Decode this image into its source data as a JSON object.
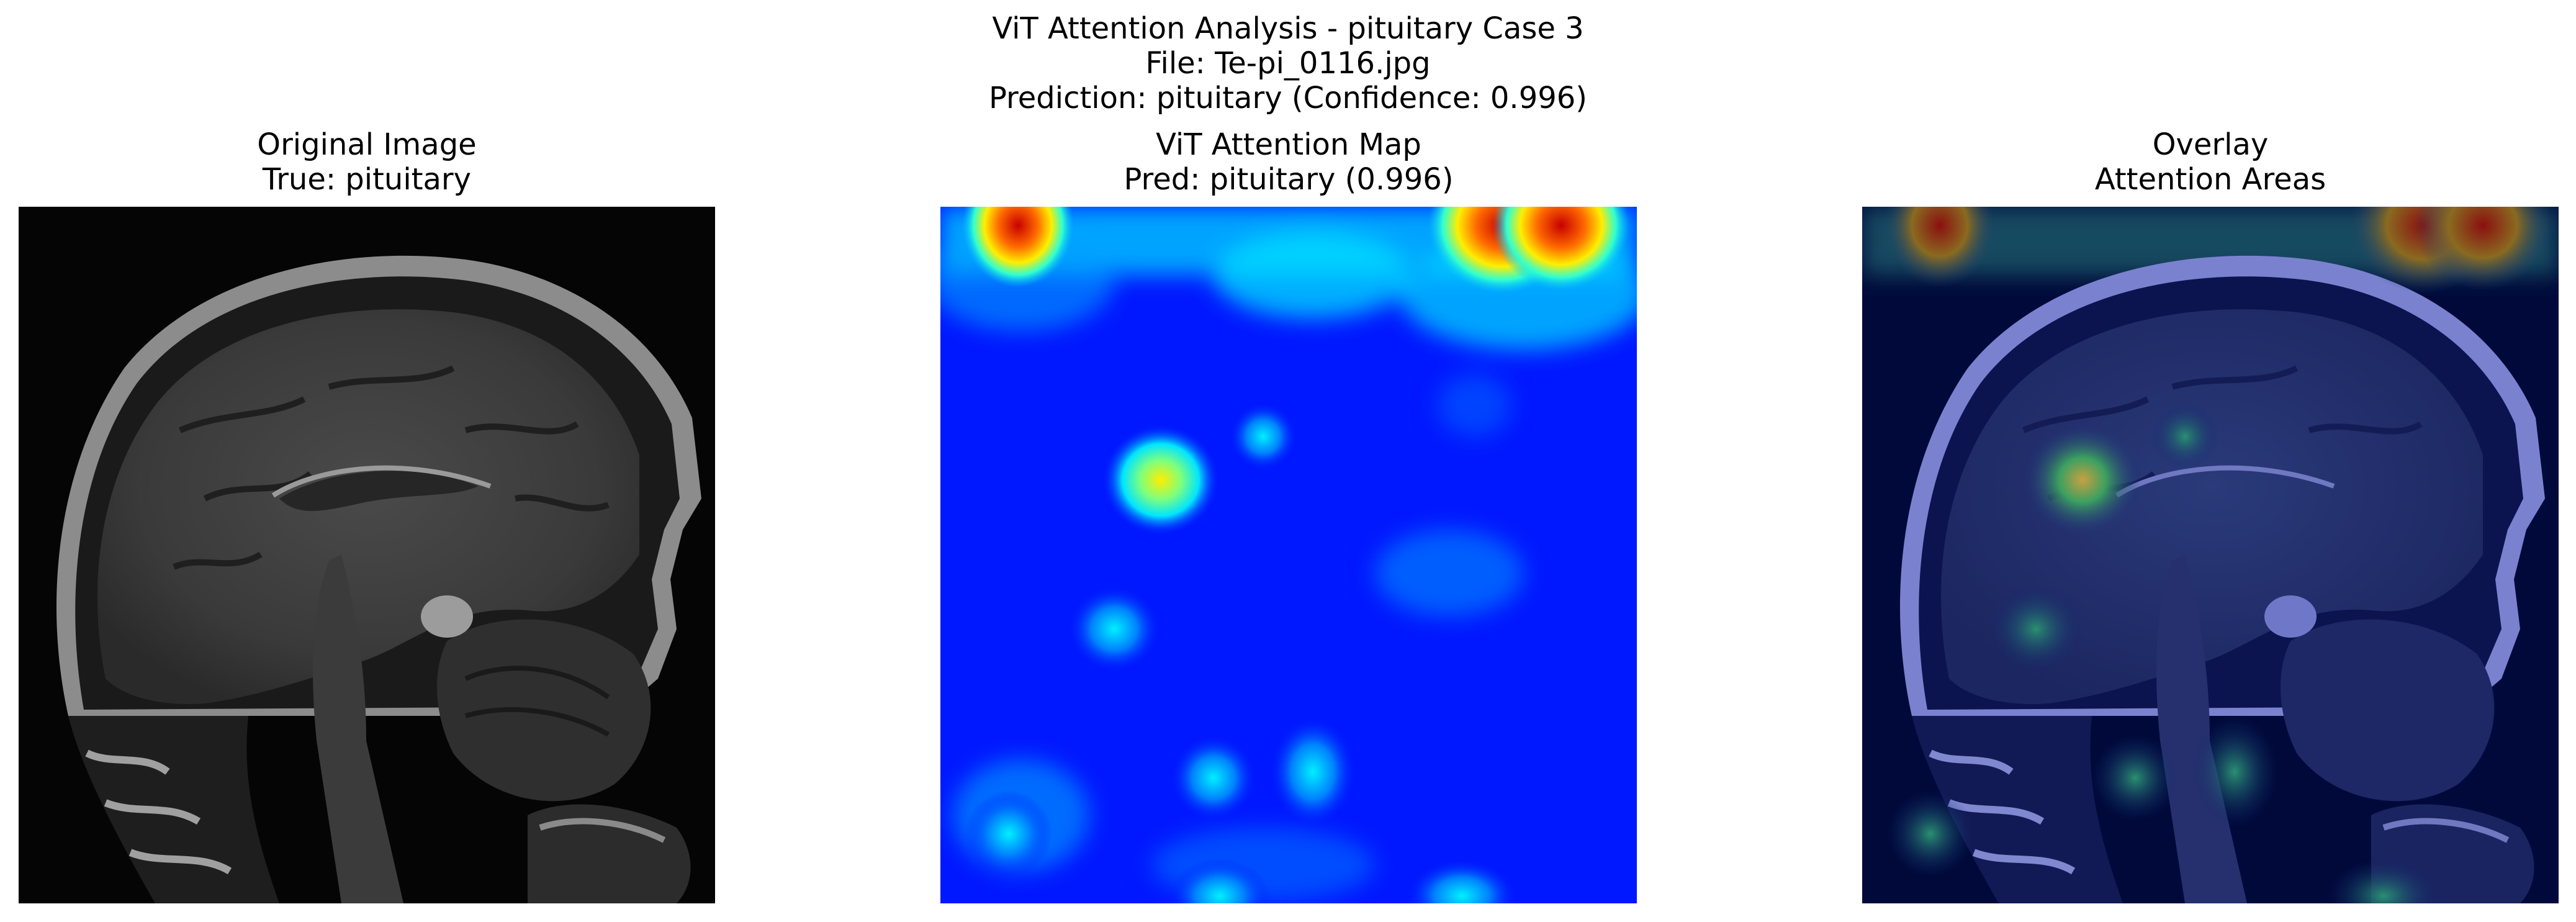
{
  "figure": {
    "suptitle": {
      "line1": "ViT Attention Analysis - pituitary Case 3",
      "line2": "File: Te-pi_0116.jpg",
      "line3": "Prediction: pituitary (Confidence: 0.996)"
    }
  },
  "panels": [
    {
      "title_line1": "Original Image",
      "title_line2": "True: pituitary"
    },
    {
      "title_line1": "ViT Attention Map",
      "title_line2": "Pred: pituitary (0.996)"
    },
    {
      "title_line1": "Overlay",
      "title_line2": "Attention Areas"
    }
  ],
  "colors": {
    "background": "#ffffff",
    "mri_black": "#050505",
    "attention_low": "#0018ff",
    "attention_mid": "#00e5ff",
    "attention_high": "#ffee00",
    "attention_peak": "#cc0000"
  }
}
